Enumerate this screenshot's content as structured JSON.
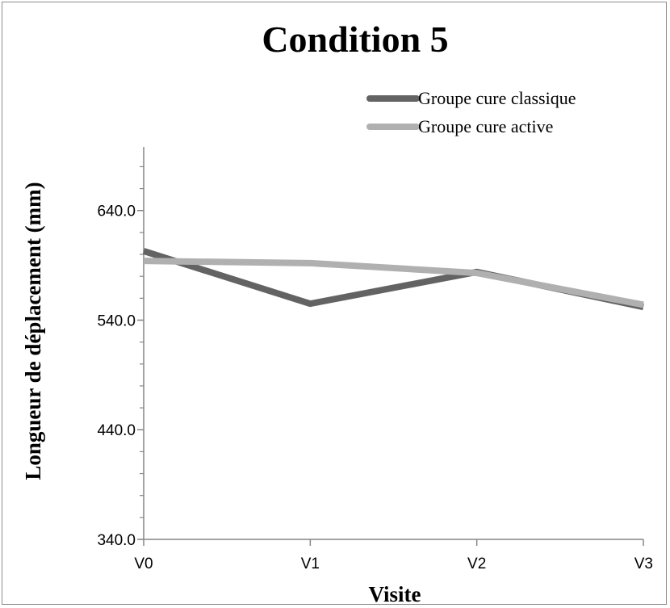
{
  "chart_data": {
    "type": "line",
    "title": "Condition 5",
    "xlabel": "Visite",
    "ylabel": "Longueur de déplacement (mm)",
    "categories": [
      "V0",
      "V1",
      "V2",
      "V3"
    ],
    "ylim": [
      340,
      698
    ],
    "yticks": [
      340,
      440,
      540,
      640
    ],
    "ytick_labels": [
      "340.0",
      "440.0",
      "540.0",
      "640.0"
    ],
    "minor_tick_step": 20,
    "legend_position": "top-right",
    "grid": false,
    "series": [
      {
        "name": "Groupe cure classique",
        "color": "#636363",
        "values": [
          603,
          555,
          584,
          552
        ]
      },
      {
        "name": "Groupe cure active",
        "color": "#b0b0b0",
        "values": [
          594,
          592,
          583,
          554
        ]
      }
    ]
  }
}
